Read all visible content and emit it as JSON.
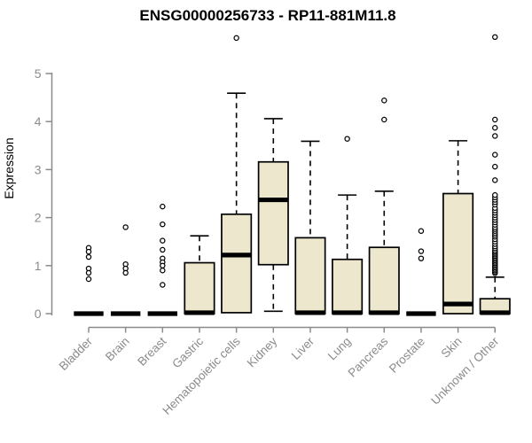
{
  "chart_data": {
    "type": "boxplot",
    "title": "ENSG00000256733 - RP11-881M11.8",
    "ylabel": "Expression",
    "xlabel": "",
    "ylim": [
      0,
      5
    ],
    "yticks": [
      0,
      1,
      2,
      3,
      4,
      5
    ],
    "grid": false,
    "legend": "none",
    "categories": [
      "Bladder",
      "Brain",
      "Breast",
      "Gastric",
      "Hematopoietic cells",
      "Kidney",
      "Liver",
      "Lung",
      "Pancreas",
      "Prostate",
      "Skin",
      "Unknown / Other"
    ],
    "series": [
      {
        "name": "Bladder",
        "q1": 0,
        "median": 0,
        "q3": 0,
        "whisker_low": 0,
        "whisker_high": 0,
        "outliers": [
          1.37,
          1.29,
          1.18,
          0.94,
          0.85,
          0.72
        ]
      },
      {
        "name": "Brain",
        "q1": 0,
        "median": 0,
        "q3": 0,
        "whisker_low": 0,
        "whisker_high": 0,
        "outliers": [
          1.8,
          1.03,
          0.94,
          0.85
        ]
      },
      {
        "name": "Breast",
        "q1": 0,
        "median": 0,
        "q3": 0,
        "whisker_low": 0,
        "whisker_high": 0,
        "outliers": [
          2.23,
          1.86,
          1.52,
          1.33,
          1.15,
          1.07,
          1.0,
          0.9,
          0.6
        ]
      },
      {
        "name": "Gastric",
        "q1": 0,
        "median": 0.02,
        "q3": 1.06,
        "whisker_low": 0,
        "whisker_high": 1.62,
        "outliers": []
      },
      {
        "name": "Hematopoietic cells",
        "q1": 0.02,
        "median": 1.22,
        "q3": 2.07,
        "whisker_low": 0.02,
        "whisker_high": 4.59,
        "outliers": [
          5.74
        ]
      },
      {
        "name": "Kidney",
        "q1": 1.02,
        "median": 2.37,
        "q3": 3.16,
        "whisker_low": 0.05,
        "whisker_high": 4.06,
        "outliers": []
      },
      {
        "name": "Liver",
        "q1": 0,
        "median": 0.02,
        "q3": 1.58,
        "whisker_low": 0,
        "whisker_high": 3.59,
        "outliers": []
      },
      {
        "name": "Lung",
        "q1": 0,
        "median": 0.02,
        "q3": 1.13,
        "whisker_low": 0,
        "whisker_high": 2.47,
        "outliers": [
          3.64
        ]
      },
      {
        "name": "Pancreas",
        "q1": 0,
        "median": 0.02,
        "q3": 1.38,
        "whisker_low": 0,
        "whisker_high": 2.55,
        "outliers": [
          4.44,
          4.04
        ]
      },
      {
        "name": "Prostate",
        "q1": 0,
        "median": 0,
        "q3": 0,
        "whisker_low": 0,
        "whisker_high": 0,
        "outliers": [
          1.72,
          1.3,
          1.15
        ]
      },
      {
        "name": "Skin",
        "q1": 0,
        "median": 0.2,
        "q3": 2.5,
        "whisker_low": 0,
        "whisker_high": 3.6,
        "outliers": []
      },
      {
        "name": "Unknown / Other",
        "q1": 0,
        "median": 0.02,
        "q3": 0.31,
        "whisker_low": 0,
        "whisker_high": 0.76,
        "outliers": [
          0.84,
          0.87,
          0.9,
          0.93,
          0.96,
          0.99,
          1.02,
          1.05,
          1.08,
          1.11,
          1.14,
          1.17,
          1.2,
          1.23,
          1.26,
          1.29,
          1.32,
          1.36,
          1.4,
          1.45,
          1.5,
          1.55,
          1.6,
          1.64,
          1.68,
          1.72,
          1.76,
          1.8,
          1.85,
          1.9,
          1.95,
          2.0,
          2.05,
          2.1,
          2.15,
          2.2,
          2.27,
          2.32,
          2.37,
          2.42,
          2.47,
          2.78,
          3.06,
          3.31,
          3.7,
          3.87,
          4.04,
          5.76
        ]
      }
    ],
    "colors": {
      "box_fill": "#EDE8CD",
      "box_stroke": "#000000",
      "median": "#000000",
      "whisker": "#000000",
      "outlier_stroke": "#000000",
      "outlier_fill": "#FFFFFF",
      "axis": "#8B8B8B",
      "tick_label": "#8B8B8B",
      "title": "#000000",
      "background": "#FFFFFF"
    }
  }
}
